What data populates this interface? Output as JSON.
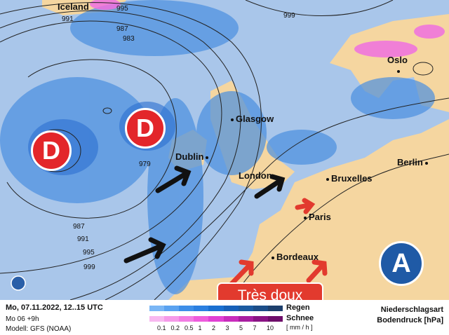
{
  "map": {
    "cities": [
      {
        "name": "Iceland",
        "dot": false
      },
      {
        "name": "Oslo",
        "dot": true
      },
      {
        "name": "Glasgow",
        "dot": true
      },
      {
        "name": "Dublin",
        "dot": true
      },
      {
        "name": "London",
        "dot": true
      },
      {
        "name": "Bruxelles",
        "dot": true
      },
      {
        "name": "Berlin",
        "dot": true
      },
      {
        "name": "Paris",
        "dot": true
      },
      {
        "name": "Bordeaux",
        "dot": true
      }
    ],
    "isobar_labels": [
      "995",
      "991",
      "987",
      "983",
      "999",
      "979",
      "987",
      "991",
      "995",
      "999"
    ],
    "low_pressure": [
      "D",
      "D"
    ],
    "high_pressure": "A",
    "annotation": "Très doux",
    "colors": {
      "sea": "#a9c6ea",
      "land": "#f5d6a0",
      "rain": "#4a8fe0",
      "snow": "#f070e0",
      "low": "#e3262a",
      "high": "#1f5aa6",
      "warm_arrow": "#e23a2e",
      "arrow": "#111111"
    }
  },
  "footer": {
    "date": "Mo, 07.11.2022, 12..15 UTC",
    "run": "Mo 06 +9h",
    "model": "Modell: GFS (NOAA)",
    "rain_label": "Regen",
    "snow_label": "Schnee",
    "unit": "[ mm / h ]",
    "title1": "Niederschlagsart",
    "title2": "Bodendruck [hPa]",
    "ticks": [
      "0.1",
      "0.2",
      "0.5",
      "1",
      "2",
      "3",
      "5",
      "7",
      "10"
    ],
    "rain_colors": [
      "#7ab6f5",
      "#5aa2f0",
      "#3d8ee8",
      "#2b7fe0",
      "#1a6fd0",
      "#1760b8",
      "#1b5aa0",
      "#1c4d88",
      "#1d3f6c"
    ],
    "snow_colors": [
      "#f8b8f0",
      "#f59ae9",
      "#f27ce3",
      "#ee5cdc",
      "#e040d4",
      "#c82cbc",
      "#a81ea0",
      "#8a1484",
      "#6e0e6a"
    ]
  }
}
